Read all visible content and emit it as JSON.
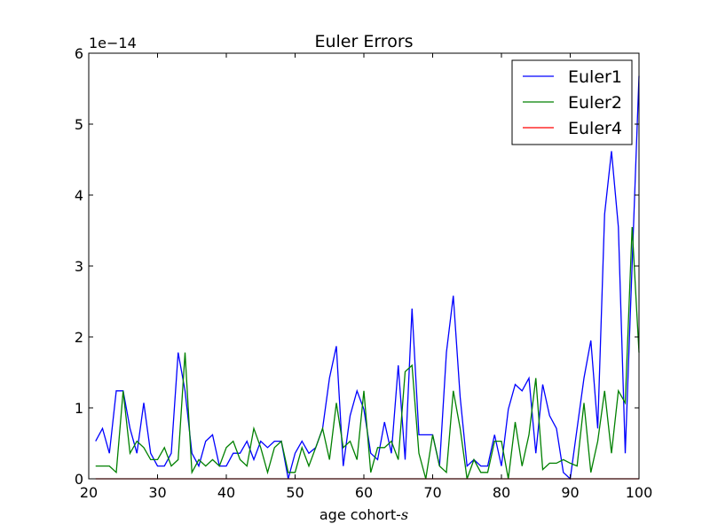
{
  "chart_data": {
    "type": "line",
    "title": "Euler Errors",
    "xlabel": "age cohort-",
    "xlabel_var": "s",
    "ylabel": "",
    "y_offset_label": "1e−14",
    "xlim": [
      20,
      100
    ],
    "ylim": [
      0,
      6
    ],
    "xticks": [
      20,
      30,
      40,
      50,
      60,
      70,
      80,
      90,
      100
    ],
    "yticks": [
      0,
      1,
      2,
      3,
      4,
      5,
      6
    ],
    "grid": false,
    "legend_position": "top-right",
    "colors": {
      "Euler1": "#0000ff",
      "Euler2": "#008000",
      "Euler4": "#ff0000"
    },
    "x": [
      21,
      22,
      23,
      24,
      25,
      26,
      27,
      28,
      29,
      30,
      31,
      32,
      33,
      34,
      35,
      36,
      37,
      38,
      39,
      40,
      41,
      42,
      43,
      44,
      45,
      46,
      47,
      48,
      49,
      50,
      51,
      52,
      53,
      54,
      55,
      56,
      57,
      58,
      59,
      60,
      61,
      62,
      63,
      64,
      65,
      66,
      67,
      68,
      69,
      70,
      71,
      72,
      73,
      74,
      75,
      76,
      77,
      78,
      79,
      80,
      81,
      82,
      83,
      84,
      85,
      86,
      87,
      88,
      89,
      90,
      91,
      92,
      93,
      94,
      95,
      96,
      97,
      98,
      99,
      100
    ],
    "series": [
      {
        "name": "Euler1",
        "values": [
          0.53,
          0.71,
          0.36,
          1.24,
          1.24,
          0.71,
          0.36,
          1.07,
          0.36,
          0.18,
          0.18,
          0.36,
          1.78,
          1.24,
          0.36,
          0.18,
          0.53,
          0.62,
          0.18,
          0.18,
          0.36,
          0.36,
          0.53,
          0.27,
          0.53,
          0.44,
          0.53,
          0.53,
          0.0,
          0.36,
          0.53,
          0.36,
          0.44,
          0.71,
          1.42,
          1.87,
          0.18,
          0.89,
          1.24,
          0.98,
          0.36,
          0.27,
          0.8,
          0.36,
          1.6,
          0.27,
          2.4,
          0.62,
          0.62,
          0.62,
          0.18,
          1.78,
          2.58,
          1.15,
          0.18,
          0.27,
          0.18,
          0.18,
          0.62,
          0.18,
          0.98,
          1.33,
          1.24,
          1.42,
          0.36,
          1.33,
          0.89,
          0.71,
          0.09,
          0.0,
          0.71,
          1.42,
          1.95,
          0.71,
          3.73,
          4.62,
          3.55,
          0.36,
          3.02,
          5.68
        ]
      },
      {
        "name": "Euler2",
        "values": [
          0.18,
          0.18,
          0.18,
          0.09,
          1.24,
          0.36,
          0.53,
          0.44,
          0.27,
          0.27,
          0.44,
          0.18,
          0.27,
          1.78,
          0.09,
          0.27,
          0.18,
          0.27,
          0.18,
          0.44,
          0.53,
          0.27,
          0.18,
          0.71,
          0.44,
          0.09,
          0.44,
          0.53,
          0.09,
          0.09,
          0.44,
          0.18,
          0.44,
          0.71,
          0.27,
          1.07,
          0.44,
          0.53,
          0.27,
          1.24,
          0.09,
          0.44,
          0.44,
          0.53,
          0.27,
          1.51,
          1.6,
          0.36,
          0.0,
          0.62,
          0.18,
          0.09,
          1.24,
          0.71,
          0.0,
          0.27,
          0.09,
          0.09,
          0.53,
          0.53,
          0.0,
          0.8,
          0.18,
          0.62,
          1.42,
          0.13,
          0.22,
          0.22,
          0.27,
          0.22,
          0.18,
          1.07,
          0.09,
          0.53,
          1.24,
          0.36,
          1.24,
          1.07,
          3.55,
          1.78
        ]
      },
      {
        "name": "Euler4",
        "values": [
          0,
          0,
          0,
          0,
          0,
          0,
          0,
          0,
          0,
          0,
          0,
          0,
          0,
          0,
          0,
          0,
          0,
          0,
          0,
          0,
          0,
          0,
          0,
          0,
          0,
          0,
          0,
          0,
          0,
          0,
          0,
          0,
          0,
          0,
          0,
          0,
          0,
          0,
          0,
          0,
          0,
          0,
          0,
          0,
          0,
          0,
          0,
          0,
          0,
          0,
          0,
          0,
          0,
          0,
          0,
          0,
          0,
          0,
          0,
          0,
          0,
          0,
          0,
          0,
          0,
          0,
          0,
          0,
          0,
          0,
          0,
          0,
          0,
          0,
          0,
          0,
          0,
          0,
          0,
          0
        ]
      }
    ]
  }
}
